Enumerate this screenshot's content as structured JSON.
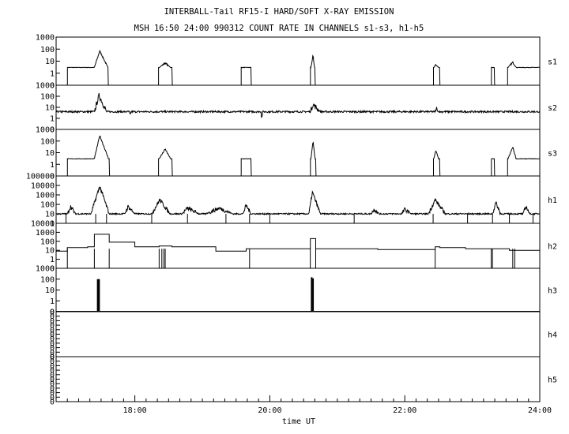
{
  "chart_data": {
    "type": "line",
    "title": "INTERBALL-Tail RF15-I HARD/SOFT X-RAY EMISSION",
    "subtitle": "MSH 16:50 24:00 990312  COUNT RATE IN CHANNELS s1-s3, h1-h5",
    "xlabel": "time UT",
    "x_ticks": [
      "18:00",
      "20:00",
      "22:00",
      "24:00"
    ],
    "xlim": [
      "16:50",
      "24:00"
    ],
    "yscale": "log",
    "grid": false,
    "panels": [
      {
        "name": "s1",
        "y_ticks": [
          "1000",
          "100",
          "10",
          "1",
          "0"
        ],
        "ylim": [
          0.1,
          1000
        ],
        "baseline": 3,
        "noise": 0.02,
        "gaps": [
          [
            16.833,
            17.0
          ],
          [
            17.605,
            18.35
          ],
          [
            18.55,
            19.57
          ],
          [
            19.72,
            20.6
          ],
          [
            20.67,
            22.42
          ],
          [
            22.52,
            23.28
          ],
          [
            23.33,
            23.52
          ]
        ],
        "peaks": [
          {
            "start": 17.4,
            "peak": 17.48,
            "end": 17.6,
            "value": 70,
            "spikes": [
              [
                17.52,
                25
              ]
            ]
          },
          {
            "start": 18.36,
            "peak": 18.45,
            "end": 18.53,
            "value": 7,
            "spikes": [
              [
                18.49,
                5
              ],
              [
                18.52,
                3
              ]
            ]
          },
          {
            "start": 19.73,
            "peak": 19.76,
            "end": 19.79,
            "value": 8,
            "spikes": []
          },
          {
            "start": 20.61,
            "peak": 20.64,
            "end": 20.66,
            "value": 30,
            "spikes": []
          },
          {
            "start": 22.43,
            "peak": 22.46,
            "end": 22.5,
            "value": 5,
            "spikes": []
          },
          {
            "start": 23.53,
            "peak": 23.6,
            "end": 23.65,
            "value": 8,
            "spikes": []
          }
        ]
      },
      {
        "name": "s2",
        "y_ticks": [
          "1000",
          "100",
          "10",
          "1",
          "0"
        ],
        "ylim": [
          0.1,
          1000
        ],
        "baseline": 4,
        "noise": 0.08,
        "gaps": [],
        "peaks": [
          {
            "start": 17.4,
            "peak": 17.47,
            "end": 17.58,
            "value": 120,
            "spikes": []
          },
          {
            "start": 20.6,
            "peak": 20.64,
            "end": 20.75,
            "value": 18,
            "spikes": []
          },
          {
            "start": 22.45,
            "peak": 22.47,
            "end": 22.5,
            "value": 7,
            "spikes": []
          }
        ],
        "dips": [
          [
            19.88,
            1.5
          ],
          [
            17.93,
            2.5
          ]
        ]
      },
      {
        "name": "s3",
        "y_ticks": [
          "1000",
          "100",
          "10",
          "1",
          "0"
        ],
        "ylim": [
          0.1,
          1000
        ],
        "baseline": 3,
        "noise": 0.02,
        "gaps": [
          [
            16.833,
            17.0
          ],
          [
            17.62,
            18.35
          ],
          [
            18.55,
            19.57
          ],
          [
            19.72,
            20.6
          ],
          [
            20.68,
            22.42
          ],
          [
            22.52,
            23.28
          ],
          [
            23.33,
            23.52
          ]
        ],
        "peaks": [
          {
            "start": 17.4,
            "peak": 17.48,
            "end": 17.61,
            "value": 300,
            "spikes": []
          },
          {
            "start": 18.36,
            "peak": 18.45,
            "end": 18.53,
            "value": 20,
            "spikes": []
          },
          {
            "start": 19.73,
            "peak": 19.76,
            "end": 19.79,
            "value": 20,
            "spikes": []
          },
          {
            "start": 20.61,
            "peak": 20.64,
            "end": 20.67,
            "value": 100,
            "spikes": []
          },
          {
            "start": 22.43,
            "peak": 22.46,
            "end": 22.5,
            "value": 15,
            "spikes": []
          },
          {
            "start": 23.53,
            "peak": 23.6,
            "end": 23.65,
            "value": 30,
            "spikes": []
          }
        ]
      },
      {
        "name": "h1",
        "y_ticks": [
          "100000",
          "10000",
          "1000",
          "100",
          "10",
          "1"
        ],
        "ylim": [
          1,
          100000
        ],
        "baseline": 10,
        "noise": 0.07,
        "gaps": [],
        "peaks": [
          {
            "start": 17.0,
            "peak": 17.05,
            "end": 17.12,
            "value": 60,
            "spikes": []
          },
          {
            "start": 17.35,
            "peak": 17.48,
            "end": 17.62,
            "value": 8000,
            "spikes": []
          },
          {
            "start": 17.85,
            "peak": 17.9,
            "end": 18.0,
            "value": 60,
            "spikes": []
          },
          {
            "start": 18.25,
            "peak": 18.37,
            "end": 18.52,
            "value": 300,
            "spikes": []
          },
          {
            "start": 18.7,
            "peak": 18.78,
            "end": 18.95,
            "value": 40,
            "spikes": []
          },
          {
            "start": 19.05,
            "peak": 19.25,
            "end": 19.45,
            "value": 40,
            "spikes": []
          },
          {
            "start": 19.6,
            "peak": 19.65,
            "end": 19.72,
            "value": 80,
            "spikes": []
          },
          {
            "start": 20.58,
            "peak": 20.63,
            "end": 20.75,
            "value": 2000,
            "spikes": []
          },
          {
            "start": 21.5,
            "peak": 21.55,
            "end": 21.62,
            "value": 30,
            "spikes": []
          },
          {
            "start": 21.95,
            "peak": 22.0,
            "end": 22.1,
            "value": 30,
            "spikes": []
          },
          {
            "start": 22.35,
            "peak": 22.45,
            "end": 22.6,
            "value": 300,
            "spikes": []
          },
          {
            "start": 23.3,
            "peak": 23.35,
            "end": 23.42,
            "value": 150,
            "spikes": []
          },
          {
            "start": 23.75,
            "peak": 23.8,
            "end": 23.85,
            "value": 60,
            "spikes": []
          }
        ],
        "drops": [
          16.98,
          17.42,
          17.58,
          18.25,
          18.78,
          19.35,
          19.7,
          20.0,
          21.25,
          22.42,
          22.93,
          23.3,
          23.55,
          23.9
        ]
      },
      {
        "name": "h2",
        "y_ticks": [
          "10000",
          "1000",
          "100",
          "10",
          "1",
          "0"
        ],
        "ylim": [
          0.1,
          10000
        ],
        "steps": [
          [
            16.833,
            8
          ],
          [
            17.0,
            20
          ],
          [
            17.3,
            25
          ],
          [
            17.4,
            600
          ],
          [
            17.62,
            80
          ],
          [
            18.0,
            25
          ],
          [
            18.36,
            30
          ],
          [
            18.55,
            25
          ],
          [
            19.2,
            8
          ],
          [
            19.65,
            15
          ],
          [
            20.6,
            200
          ],
          [
            20.68,
            15
          ],
          [
            21.6,
            12
          ],
          [
            22.45,
            25
          ],
          [
            22.52,
            20
          ],
          [
            22.9,
            15
          ],
          [
            23.3,
            15
          ],
          [
            23.55,
            10
          ],
          [
            23.62,
            10
          ]
        ],
        "drops": [
          17.0,
          17.4,
          17.62,
          18.36,
          18.4,
          18.43,
          18.45,
          19.7,
          20.6,
          20.68,
          22.45,
          23.28,
          23.3,
          23.6,
          23.63
        ]
      },
      {
        "name": "h3",
        "y_ticks": [
          "1000",
          "100",
          "10",
          "1",
          "0"
        ],
        "ylim": [
          0.1,
          1000
        ],
        "spikes": [
          [
            17.45,
            100
          ],
          [
            17.47,
            100
          ],
          [
            20.62,
            150
          ],
          [
            20.64,
            120
          ]
        ]
      },
      {
        "name": "h4",
        "y_ticks": [
          "0",
          "0",
          "0",
          "0",
          "0",
          "0",
          "0",
          "0",
          "0",
          "0",
          "0"
        ],
        "ylim": [
          0,
          1
        ],
        "series": []
      },
      {
        "name": "h5",
        "y_ticks": [
          "0",
          "0",
          "0",
          "0",
          "0",
          "0",
          "0",
          "0",
          "0",
          "0",
          "0"
        ],
        "ylim": [
          0,
          1
        ],
        "series": []
      }
    ]
  }
}
